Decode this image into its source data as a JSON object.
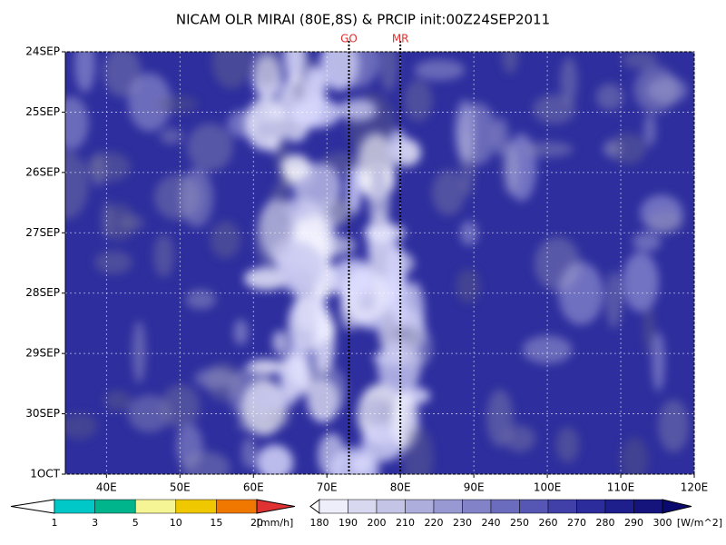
{
  "chart_data": {
    "type": "hovmoller",
    "title": "NICAM OLR MIRAI (80E,8S) & PRCIP init:00Z24SEP2011",
    "xlim": [
      34.4,
      120
    ],
    "xticks": [
      {
        "value": 40,
        "label": "40E"
      },
      {
        "value": 50,
        "label": "50E"
      },
      {
        "value": 60,
        "label": "60E"
      },
      {
        "value": 70,
        "label": "70E"
      },
      {
        "value": 80,
        "label": "80E"
      },
      {
        "value": 90,
        "label": "90E"
      },
      {
        "value": 100,
        "label": "100E"
      },
      {
        "value": 110,
        "label": "110E"
      },
      {
        "value": 120,
        "label": "120E"
      }
    ],
    "ylim": [
      0,
      7
    ],
    "yticks": [
      {
        "value": 0,
        "label": "24SEP"
      },
      {
        "value": 1,
        "label": "25SEP"
      },
      {
        "value": 2,
        "label": "26SEP"
      },
      {
        "value": 3,
        "label": "27SEP"
      },
      {
        "value": 4,
        "label": "28SEP"
      },
      {
        "value": 5,
        "label": "29SEP"
      },
      {
        "value": 6,
        "label": "30SEP"
      },
      {
        "value": 7,
        "label": "1OCT"
      }
    ],
    "grid": true,
    "markers": [
      {
        "label": "GO",
        "x": 73,
        "color": "#e03030"
      },
      {
        "label": "MR",
        "x": 80,
        "color": "#e03030"
      }
    ],
    "precip_colorbar": {
      "levels": [
        1,
        3,
        5,
        10,
        15,
        20
      ],
      "unit": "[mm/h]",
      "colors": [
        "#ffffff",
        "#00c8c8",
        "#00b48c",
        "#f5f596",
        "#f0c800",
        "#f07800",
        "#e03232"
      ]
    },
    "olr_colorbar": {
      "levels": [
        180,
        190,
        200,
        210,
        220,
        230,
        240,
        250,
        260,
        270,
        280,
        290,
        300
      ],
      "unit": "[W/m^2]",
      "colors": [
        "#ffffff",
        "#eeeefa",
        "#d8d8f0",
        "#c4c4e6",
        "#aeaedc",
        "#9898d2",
        "#8282c8",
        "#6c6cbe",
        "#5656b4",
        "#4040a8",
        "#2c2c9c",
        "#1e1e8c",
        "#14147c",
        "#0a0a6e"
      ]
    }
  }
}
